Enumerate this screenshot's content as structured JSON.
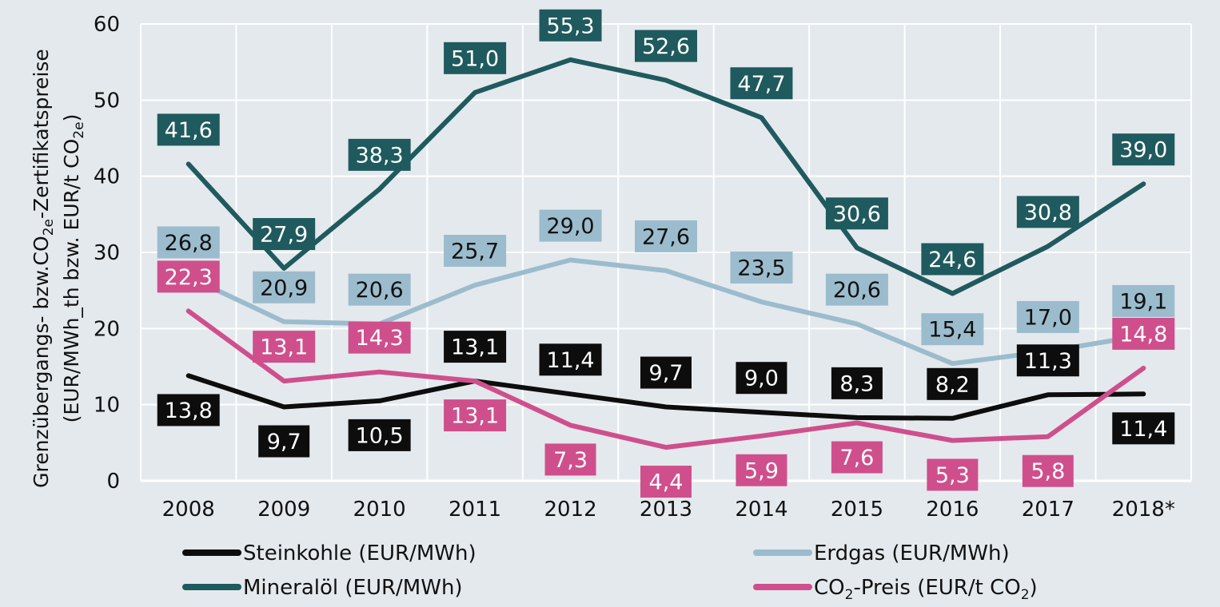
{
  "chart_data": {
    "type": "line",
    "categories": [
      "2008",
      "2009",
      "2010",
      "2011",
      "2012",
      "2013",
      "2014",
      "2015",
      "2016",
      "2017",
      "2018*"
    ],
    "ylim": [
      0,
      60
    ],
    "yticks": [
      "0",
      "10",
      "20",
      "30",
      "40",
      "50",
      "60"
    ],
    "ylabel": {
      "line1_part1": "Grenzübergangs- bzw.CO",
      "line1_sub": "2e",
      "line1_part2": "-Zertifikatspreise",
      "line2_part1": "(EUR/MWh_th bzw. EUR/t CO",
      "line2_sub": "2e",
      "line2_part2": ")"
    },
    "grid": true,
    "series": [
      {
        "key": "mineraloel",
        "name": "Mineralöl (EUR/MWh)",
        "color": "#1f5a5e",
        "values": [
          41.6,
          27.9,
          38.3,
          51.0,
          55.3,
          52.6,
          47.7,
          30.6,
          24.6,
          30.8,
          39.0
        ],
        "labels": [
          "41,6",
          "27,9",
          "38,3",
          "51,0",
          "55,3",
          "52,6",
          "47,7",
          "30,6",
          "24,6",
          "30,8",
          "39,0"
        ]
      },
      {
        "key": "erdgas",
        "name": "Erdgas (EUR/MWh)",
        "color": "#9bbccd",
        "values": [
          26.8,
          20.9,
          20.6,
          25.7,
          29.0,
          27.6,
          23.5,
          20.6,
          15.4,
          17.0,
          19.1
        ],
        "labels": [
          "26,8",
          "20,9",
          "20,6",
          "25,7",
          "29,0",
          "27,6",
          "23,5",
          "20,6",
          "15,4",
          "17,0",
          "19,1"
        ]
      },
      {
        "key": "steinkohle",
        "name": "Steinkohle (EUR/MWh)",
        "color": "#0d0d0d",
        "values": [
          13.8,
          9.7,
          10.5,
          13.1,
          11.4,
          9.7,
          9.0,
          8.3,
          8.2,
          11.3,
          11.4
        ],
        "labels": [
          "13,8",
          "9,7",
          "10,5",
          "13,1",
          "11,4",
          "9,7",
          "9,0",
          "8,3",
          "8,2",
          "11,3",
          "11,4"
        ]
      },
      {
        "key": "co2",
        "name": "CO2-Preis (EUR/t CO2)",
        "color": "#cf4f8d",
        "values": [
          22.3,
          13.1,
          14.3,
          13.1,
          7.3,
          4.4,
          5.9,
          7.6,
          5.3,
          5.8,
          14.8
        ],
        "labels": [
          "22,3",
          "13,1",
          "14,3",
          "13,1",
          "7,3",
          "4,4",
          "5,9",
          "7,6",
          "5,3",
          "5,8",
          "14,8"
        ]
      }
    ],
    "legend": {
      "steinkohle": "Steinkohle (EUR/MWh)",
      "mineraloel": "Mineralöl (EUR/MWh)",
      "erdgas": "Erdgas (EUR/MWh)",
      "co2_part1": "CO",
      "co2_sub1": "2",
      "co2_part2": "-Preis (EUR/t CO",
      "co2_sub2": "2",
      "co2_part3": ")"
    }
  }
}
